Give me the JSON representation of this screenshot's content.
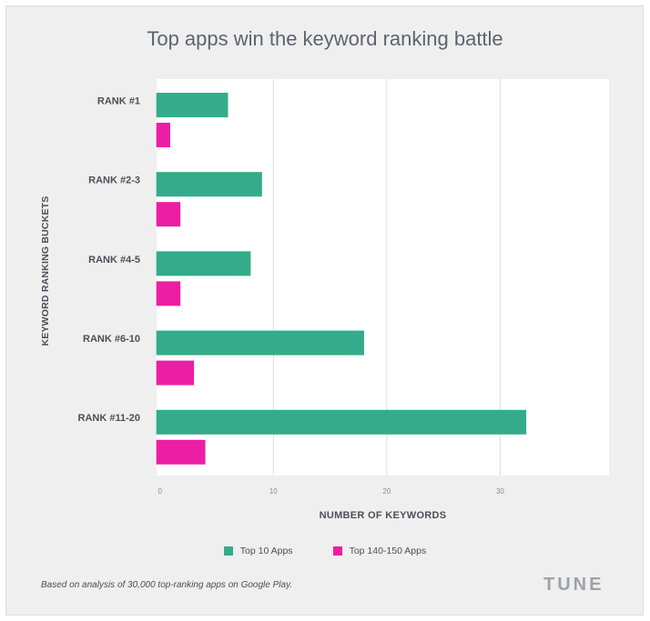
{
  "title": "Top apps win the keyword ranking battle",
  "footnote": "Based on analysis of 30,000 top-ranking apps on Google Play.",
  "brand": "TUNE",
  "colors": {
    "top10": "#34ab8a",
    "top140": "#ec1ea3",
    "grid": "#dedede",
    "plot_bg": "#ffffff",
    "page_bg": "#efefef"
  },
  "chart_data": {
    "type": "bar",
    "orientation": "horizontal",
    "title": "Top apps win the keyword ranking battle",
    "xlabel": "NUMBER OF KEYWORDS",
    "ylabel": "KEYWORD RANKING BUCKETS",
    "categories": [
      "RANK #1",
      "RANK #2-3",
      "RANK #4-5",
      "RANK #6-10",
      "RANK #11-20"
    ],
    "series": [
      {
        "name": "Top 10 Apps",
        "color": "#34ab8a",
        "values": [
          6,
          9,
          8,
          18,
          32.3
        ]
      },
      {
        "name": "Top 140-150 Apps",
        "color": "#ec1ea3",
        "values": [
          0.9,
          1.8,
          1.8,
          3.0,
          4.0
        ]
      }
    ],
    "xlim": [
      -0.3,
      39.6
    ],
    "xticks": [
      0,
      10,
      20,
      30
    ],
    "grid": true,
    "legend_position": "bottom"
  }
}
